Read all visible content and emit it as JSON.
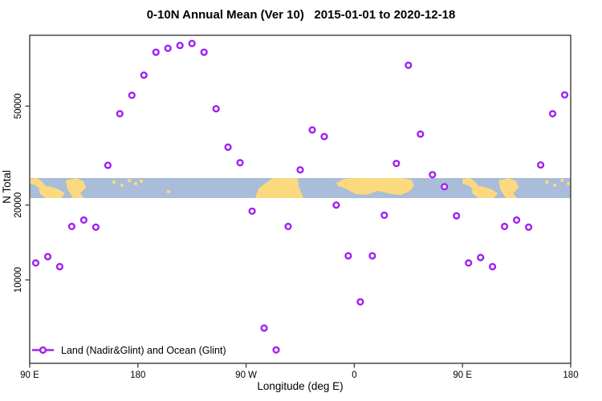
{
  "title": "0-10N Annual Mean (Ver 10)   2015-01-01 to 2020-12-18",
  "axes": {
    "x": {
      "label": "Longitude (deg E)",
      "ticks": [
        {
          "pos": 90,
          "label": "90 E"
        },
        {
          "pos": 180,
          "label": "180"
        },
        {
          "pos": 270,
          "label": "90 W"
        },
        {
          "pos": 360,
          "label": "0"
        },
        {
          "pos": 450,
          "label": "90 E"
        },
        {
          "pos": 540,
          "label": "180"
        }
      ]
    },
    "y": {
      "label": "N Total",
      "scale": "log",
      "ticks": [
        {
          "value": 10000,
          "label": "10000"
        },
        {
          "value": 20000,
          "label": "20000"
        },
        {
          "value": 50000,
          "label": "50000"
        }
      ]
    }
  },
  "legend": {
    "label": "Land (Nadir&Glint) and Ocean (Glint)"
  },
  "colors": {
    "marker": "#A020F0",
    "marker_fill": "#ffffff",
    "ocean": "#a9bcd9",
    "land": "#fbd97e",
    "frame": "#3c3c3c",
    "text": "#000000"
  },
  "chart_data": {
    "type": "scatter",
    "title": "0-10N Annual Mean (Ver 10)   2015-01-01 to 2020-12-18",
    "xlabel": "Longitude (deg E)",
    "ylabel": "N Total",
    "x_axis_note": "longitude axis wraps: 90E → 180 → 90W → 0 → 90E → 180 (plotted as 90..540 continuous degrees)",
    "x_domain": [
      90,
      540
    ],
    "ylim": [
      4700,
      96000
    ],
    "y_scale": "log",
    "grid": false,
    "legend_position": "bottom-left inside plot",
    "map_band": {
      "description": "world coastline strip (ocean + land) drawn across plot",
      "n_range": [
        21300,
        25700
      ]
    },
    "series": [
      {
        "name": "Land (Nadir&Glint) and Ocean (Glint)",
        "points": [
          {
            "lon": 95,
            "n": 11700
          },
          {
            "lon": 105,
            "n": 12400
          },
          {
            "lon": 115,
            "n": 11300
          },
          {
            "lon": 125,
            "n": 16400
          },
          {
            "lon": 135,
            "n": 17400
          },
          {
            "lon": 145,
            "n": 16300
          },
          {
            "lon": 155,
            "n": 28900
          },
          {
            "lon": 165,
            "n": 46600
          },
          {
            "lon": 175,
            "n": 55300
          },
          {
            "lon": 185,
            "n": 66600
          },
          {
            "lon": 195,
            "n": 82400
          },
          {
            "lon": 205,
            "n": 85400
          },
          {
            "lon": 215,
            "n": 87700
          },
          {
            "lon": 225,
            "n": 89300
          },
          {
            "lon": 235,
            "n": 82400
          },
          {
            "lon": 245,
            "n": 48800
          },
          {
            "lon": 255,
            "n": 34200
          },
          {
            "lon": 265,
            "n": 29600
          },
          {
            "lon": 275,
            "n": 18900
          },
          {
            "lon": 285,
            "n": 6400
          },
          {
            "lon": 295,
            "n": 5230
          },
          {
            "lon": 305,
            "n": 16400
          },
          {
            "lon": 315,
            "n": 27700
          },
          {
            "lon": 325,
            "n": 40100
          },
          {
            "lon": 335,
            "n": 37700
          },
          {
            "lon": 345,
            "n": 20000
          },
          {
            "lon": 355,
            "n": 12500
          },
          {
            "lon": 365,
            "n": 8160
          },
          {
            "lon": 375,
            "n": 12500
          },
          {
            "lon": 385,
            "n": 18200
          },
          {
            "lon": 395,
            "n": 29400
          },
          {
            "lon": 405,
            "n": 73000
          },
          {
            "lon": 415,
            "n": 38600
          },
          {
            "lon": 425,
            "n": 26500
          },
          {
            "lon": 435,
            "n": 23700
          },
          {
            "lon": 445,
            "n": 18100
          },
          {
            "lon": 455,
            "n": 11700
          },
          {
            "lon": 465,
            "n": 12300
          },
          {
            "lon": 475,
            "n": 11300
          },
          {
            "lon": 485,
            "n": 16400
          },
          {
            "lon": 495,
            "n": 17400
          },
          {
            "lon": 505,
            "n": 16300
          },
          {
            "lon": 515,
            "n": 29000
          },
          {
            "lon": 525,
            "n": 46600
          },
          {
            "lon": 535,
            "n": 55500
          }
        ]
      }
    ]
  }
}
